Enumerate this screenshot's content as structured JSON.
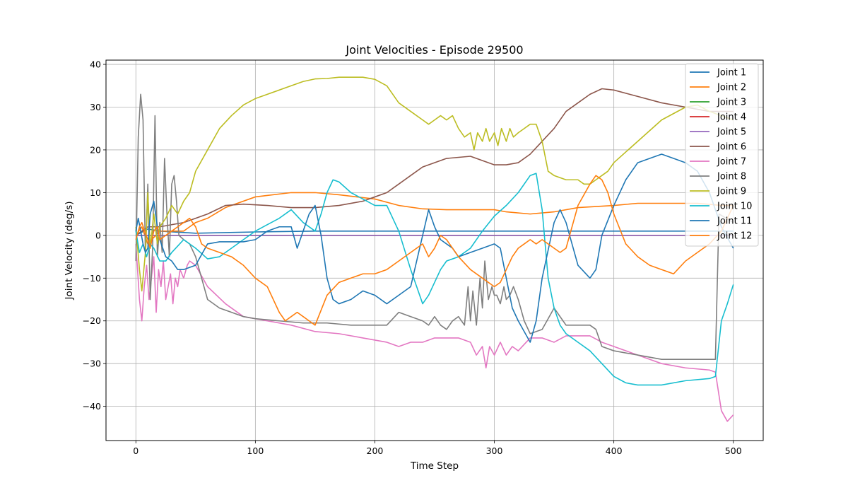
{
  "chart_data": {
    "type": "line",
    "title": "Joint Velocities - Episode 29500",
    "xlabel": "Time Step",
    "ylabel": "Joint Velocity (deg/s)",
    "xlim": [
      -25,
      525
    ],
    "ylim": [
      -48,
      41
    ],
    "xticks": [
      0,
      100,
      200,
      300,
      400,
      500
    ],
    "yticks": [
      -40,
      -30,
      -20,
      -10,
      0,
      10,
      20,
      30,
      40
    ],
    "xtick_labels": [
      "0",
      "100",
      "200",
      "300",
      "400",
      "500"
    ],
    "ytick_labels": [
      "−40",
      "−30",
      "−20",
      "−10",
      "0",
      "10",
      "20",
      "30",
      "40"
    ],
    "grid": true,
    "legend_position": "top-right",
    "series": [
      {
        "name": "Joint 1",
        "color": "#1f77b4",
        "x": [
          0,
          10,
          20,
          50,
          100,
          150,
          200,
          250,
          300,
          330,
          350,
          400,
          450,
          500
        ],
        "y": [
          0,
          1.5,
          1,
          0.5,
          0.8,
          1,
          1,
          1,
          1,
          1,
          1,
          1,
          1,
          1
        ]
      },
      {
        "name": "Joint 2",
        "color": "#ff7f0e",
        "x": [
          0,
          5,
          10,
          20,
          30,
          40,
          45,
          50,
          60,
          75,
          100,
          130,
          150,
          170,
          200,
          220,
          240,
          260,
          290,
          300,
          310,
          330,
          350,
          370,
          400,
          420,
          450,
          470,
          490,
          500
        ],
        "y": [
          0,
          2,
          -2,
          1,
          1,
          1,
          2,
          3,
          4,
          6.5,
          9,
          10,
          10,
          9.5,
          8.5,
          7,
          6.2,
          6,
          6,
          6,
          5.5,
          5,
          5.5,
          6.5,
          7,
          7.5,
          7.5,
          7.5,
          7,
          7
        ]
      },
      {
        "name": "Joint 3",
        "color": "#2ca02c",
        "x": [
          0,
          500
        ],
        "y": [
          0,
          0
        ]
      },
      {
        "name": "Joint 4",
        "color": "#d62728",
        "x": [
          0,
          500
        ],
        "y": [
          0,
          0
        ]
      },
      {
        "name": "Joint 5",
        "color": "#9467bd",
        "x": [
          0,
          500
        ],
        "y": [
          0,
          0
        ]
      },
      {
        "name": "Joint 6",
        "color": "#8c564b",
        "x": [
          0,
          10,
          20,
          40,
          60,
          75,
          90,
          110,
          130,
          150,
          170,
          190,
          200,
          210,
          220,
          230,
          240,
          260,
          280,
          300,
          310,
          320,
          330,
          340,
          350,
          360,
          370,
          380,
          390,
          400,
          420,
          440,
          460,
          480,
          500
        ],
        "y": [
          0,
          2,
          2,
          3,
          5,
          7,
          7.3,
          7,
          6.5,
          6.5,
          7,
          8,
          9,
          10,
          12,
          14,
          16,
          18,
          18.5,
          16.5,
          16.5,
          17,
          19,
          22,
          25,
          29,
          31,
          33,
          34.3,
          34,
          32.5,
          31,
          30,
          29,
          29
        ]
      },
      {
        "name": "Joint 7",
        "color": "#e377c2",
        "x": [
          0,
          3,
          5,
          7,
          9,
          11,
          13,
          15,
          17,
          19,
          21,
          23,
          25,
          27,
          29,
          31,
          33,
          35,
          37,
          40,
          43,
          45,
          50,
          60,
          75,
          90,
          110,
          130,
          150,
          170,
          190,
          210,
          220,
          230,
          240,
          250,
          260,
          270,
          280,
          285,
          290,
          293,
          296,
          300,
          305,
          310,
          315,
          320,
          330,
          340,
          350,
          360,
          370,
          380,
          390,
          400,
          420,
          440,
          460,
          480,
          485,
          490,
          495,
          500
        ],
        "y": [
          -2,
          -15,
          -20,
          -12,
          -7,
          -15,
          -10,
          -5,
          -18,
          -8,
          -12,
          -6,
          -15,
          -12,
          -9,
          -16,
          -10,
          -12,
          -8,
          -10,
          -7,
          -6,
          -7,
          -12,
          -16,
          -19,
          -20,
          -21,
          -22.5,
          -23,
          -24,
          -25,
          -26,
          -25,
          -25,
          -24,
          -24,
          -24,
          -25,
          -28,
          -26,
          -31,
          -26,
          -28,
          -25,
          -28,
          -26,
          -27,
          -24,
          -24,
          -25,
          -23.5,
          -23.5,
          -23.5,
          -25,
          -26,
          -28,
          -30,
          -31,
          -31.5,
          -32,
          -41,
          -43.5,
          -42
        ]
      },
      {
        "name": "Joint 8",
        "color": "#7f7f7f",
        "x": [
          0,
          2,
          4,
          6,
          8,
          10,
          12,
          14,
          16,
          18,
          20,
          22,
          24,
          26,
          28,
          30,
          32,
          34,
          36,
          40,
          45,
          50,
          55,
          60,
          70,
          80,
          90,
          100,
          120,
          140,
          160,
          180,
          200,
          210,
          220,
          230,
          240,
          245,
          250,
          255,
          260,
          265,
          270,
          275,
          278,
          280,
          282,
          285,
          288,
          290,
          292,
          295,
          298,
          300,
          302,
          305,
          308,
          310,
          313,
          316,
          320,
          325,
          330,
          340,
          350,
          360,
          370,
          380,
          385,
          390,
          400,
          420,
          440,
          460,
          480,
          485,
          488,
          500
        ],
        "y": [
          -6,
          23,
          33,
          27,
          -5,
          12,
          -15,
          -3,
          28,
          -5,
          3,
          -4,
          18,
          5,
          -5,
          12,
          14,
          8,
          0,
          -1,
          -2,
          -5,
          -10,
          -15,
          -17,
          -18,
          -19,
          -19.5,
          -20,
          -20.5,
          -20.5,
          -21,
          -21,
          -21,
          -18,
          -19,
          -20,
          -21,
          -19,
          -21,
          -22,
          -20,
          -19,
          -21,
          -12,
          -20,
          -13,
          -21,
          -10,
          -17,
          -6,
          -15,
          -12,
          -14,
          -14,
          -16,
          -12,
          -15,
          -14,
          -12,
          -15,
          -20,
          -23,
          -22,
          -17,
          -21,
          -21,
          -21,
          -22,
          -26,
          -27,
          -28,
          -29,
          -29,
          -29,
          -29,
          5,
          3
        ]
      },
      {
        "name": "Joint 9",
        "color": "#bcbd22",
        "x": [
          0,
          3,
          5,
          8,
          10,
          12,
          15,
          18,
          20,
          25,
          30,
          35,
          40,
          45,
          50,
          60,
          70,
          80,
          90,
          100,
          110,
          120,
          130,
          140,
          150,
          160,
          170,
          180,
          190,
          200,
          210,
          220,
          230,
          240,
          245,
          250,
          255,
          260,
          265,
          270,
          275,
          280,
          283,
          286,
          290,
          293,
          296,
          300,
          303,
          306,
          310,
          313,
          316,
          320,
          325,
          330,
          335,
          340,
          345,
          350,
          360,
          370,
          375,
          380,
          385,
          390,
          395,
          400,
          420,
          440,
          460,
          470,
          480,
          490,
          500
        ],
        "y": [
          2,
          -8,
          -13,
          -4,
          10,
          -3,
          5,
          -2,
          2,
          4,
          7,
          5,
          8,
          10,
          15,
          20,
          25,
          28,
          30.5,
          32,
          33,
          34,
          35,
          36,
          36.6,
          36.7,
          37,
          37,
          37,
          36.5,
          35,
          31,
          29,
          27,
          26,
          27,
          28,
          27,
          28,
          25,
          23,
          24,
          20,
          24,
          22,
          25,
          22,
          24,
          21,
          25,
          22,
          25,
          23,
          24,
          25,
          26,
          26,
          22,
          15,
          14,
          13,
          13,
          12,
          12,
          13,
          14,
          15,
          17,
          22,
          27,
          30,
          30.5,
          29,
          28,
          27
        ]
      },
      {
        "name": "Joint 10",
        "color": "#17becf",
        "x": [
          0,
          3,
          6,
          9,
          12,
          15,
          20,
          25,
          30,
          40,
          50,
          60,
          70,
          80,
          90,
          100,
          110,
          120,
          130,
          140,
          150,
          155,
          160,
          165,
          170,
          180,
          190,
          200,
          210,
          220,
          230,
          235,
          240,
          245,
          250,
          255,
          260,
          270,
          280,
          290,
          300,
          310,
          320,
          330,
          335,
          340,
          345,
          350,
          355,
          360,
          370,
          380,
          390,
          400,
          410,
          420,
          440,
          460,
          480,
          485,
          490,
          495,
          500
        ],
        "y": [
          1,
          -4,
          -2,
          -5,
          -2,
          -3,
          -6,
          -6,
          -4,
          -1,
          -3,
          -5.5,
          -5,
          -3,
          -1,
          1,
          2.5,
          4,
          6,
          3,
          1,
          5,
          10,
          13,
          12.5,
          10,
          8.5,
          7,
          7,
          1,
          -8,
          -12,
          -16,
          -14,
          -11,
          -8,
          -6,
          -5,
          -3,
          1,
          4.5,
          7,
          10,
          14,
          14.5,
          6,
          -10,
          -17,
          -21,
          -23,
          -25,
          -27,
          -30,
          -33,
          -34.5,
          -35,
          -35,
          -34,
          -33.5,
          -33,
          -20,
          -16,
          -11.5
        ]
      },
      {
        "name": "Joint 11",
        "color": "#1f77b4",
        "x": [
          0,
          2,
          4,
          6,
          8,
          10,
          12,
          15,
          18,
          20,
          25,
          30,
          35,
          40,
          45,
          50,
          60,
          70,
          80,
          90,
          100,
          110,
          120,
          130,
          135,
          140,
          145,
          150,
          155,
          160,
          165,
          170,
          180,
          190,
          200,
          210,
          220,
          230,
          240,
          245,
          250,
          255,
          260,
          265,
          270,
          280,
          290,
          300,
          305,
          310,
          315,
          320,
          330,
          335,
          340,
          350,
          355,
          360,
          365,
          370,
          380,
          385,
          390,
          400,
          410,
          420,
          430,
          440,
          450,
          460,
          470,
          480,
          490,
          500
        ],
        "y": [
          1,
          4,
          1,
          -2,
          -4,
          -3,
          5,
          8,
          2,
          -1,
          -5,
          -6,
          -8,
          -8,
          -7.5,
          -7,
          -2,
          -1.5,
          -1.5,
          -1.5,
          -1,
          1,
          2,
          2,
          -3,
          1,
          5,
          7,
          0,
          -10,
          -15,
          -16,
          -15,
          -13,
          -14,
          -16,
          -14,
          -12,
          0,
          6,
          2,
          -1,
          -2,
          -3,
          -5,
          -4,
          -3,
          -2,
          -3,
          -10,
          -17,
          -20,
          -25,
          -20,
          -10,
          3,
          6,
          3,
          -2,
          -7,
          -10,
          -8,
          0,
          7,
          13,
          17,
          18,
          19,
          18,
          17,
          15,
          10,
          2,
          -3
        ]
      },
      {
        "name": "Joint 12",
        "color": "#ff7f0e",
        "x": [
          0,
          3,
          5,
          8,
          10,
          12,
          15,
          18,
          20,
          25,
          30,
          35,
          40,
          45,
          50,
          55,
          60,
          70,
          80,
          90,
          100,
          110,
          120,
          125,
          130,
          135,
          140,
          145,
          150,
          160,
          170,
          180,
          190,
          200,
          210,
          220,
          230,
          240,
          245,
          250,
          255,
          260,
          265,
          270,
          280,
          290,
          300,
          305,
          310,
          315,
          320,
          325,
          330,
          335,
          340,
          345,
          350,
          355,
          360,
          370,
          380,
          385,
          390,
          395,
          400,
          410,
          420,
          430,
          440,
          450,
          460,
          470,
          480,
          490,
          500
        ],
        "y": [
          -1,
          2,
          3,
          0.5,
          -1,
          -3,
          1,
          2,
          -1,
          0,
          1,
          2,
          3,
          4,
          2,
          -2,
          -3,
          -4,
          -5,
          -7,
          -10,
          -12,
          -18,
          -20,
          -19,
          -18,
          -19,
          -20,
          -21,
          -14,
          -11,
          -10,
          -9,
          -9,
          -8,
          -6,
          -4,
          -2,
          -5,
          -3,
          0,
          -1,
          -3,
          -5,
          -8,
          -10,
          -12,
          -11,
          -8,
          -5,
          -3,
          -2,
          -1,
          -2,
          -1,
          -2,
          -3,
          -4,
          -3,
          7,
          12,
          14,
          13,
          10,
          5,
          -2,
          -5,
          -7,
          -8,
          -9,
          -6,
          -4,
          -2,
          1,
          7
        ]
      }
    ]
  }
}
